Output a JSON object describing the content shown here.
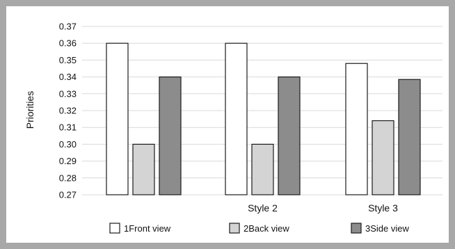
{
  "chart_data": {
    "type": "bar",
    "title": "",
    "xlabel": "",
    "ylabel": "Priorities",
    "categories": [
      "",
      "Style 2",
      "Style 3"
    ],
    "series": [
      {
        "name": "1Front view",
        "values": [
          0.36,
          0.36,
          0.348
        ],
        "color": "#ffffff"
      },
      {
        "name": "2Back view",
        "values": [
          0.3,
          0.3,
          0.314
        ],
        "color": "#d4d4d4"
      },
      {
        "name": "3Side view",
        "values": [
          0.34,
          0.34,
          0.3385
        ],
        "color": "#8c8c8c"
      }
    ],
    "ylim": [
      0.27,
      0.37
    ],
    "yticks": [
      "0.27",
      "0.28",
      "0.29",
      "0.30",
      "0.31",
      "0.32",
      "0.33",
      "0.34",
      "0.35",
      "0.36",
      "0.37"
    ],
    "grid": true,
    "legend_position": "bottom"
  }
}
